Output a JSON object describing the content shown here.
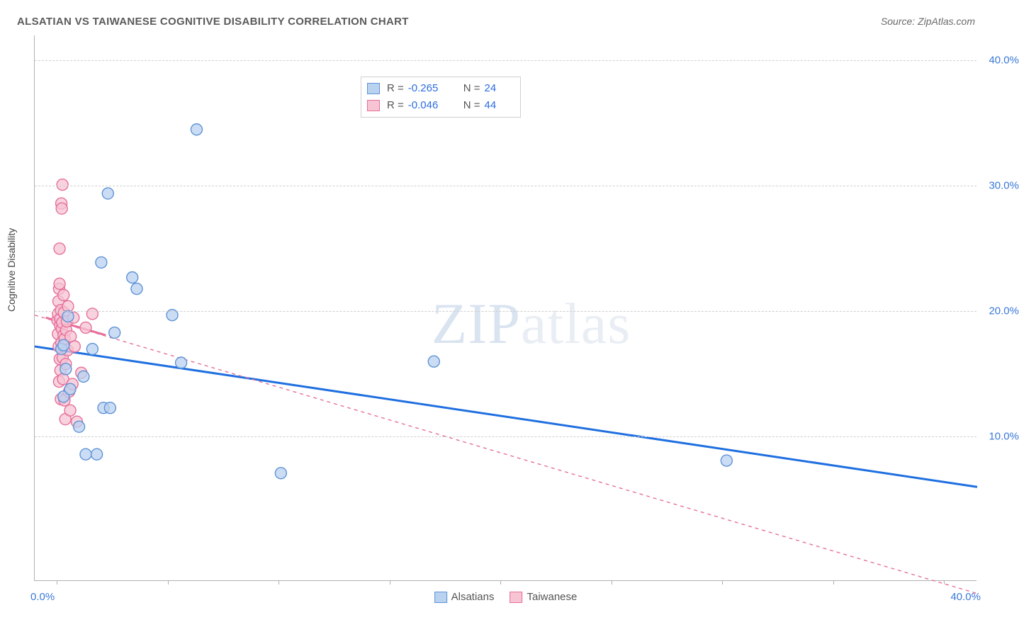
{
  "title": "ALSATIAN VS TAIWANESE COGNITIVE DISABILITY CORRELATION CHART",
  "source_label": "Source: ZipAtlas.com",
  "y_axis_title": "Cognitive Disability",
  "watermark_a": "ZIP",
  "watermark_b": "atlas",
  "chart": {
    "type": "scatter",
    "background_color": "#ffffff",
    "grid_color": "#cfcfcf",
    "axis_color": "#b0b0b0",
    "tick_label_color": "#3b78d8",
    "xlim": [
      -1.0,
      41.5
    ],
    "ylim": [
      -1.5,
      42.0
    ],
    "x_origin_label": "0.0%",
    "x_max_label": "40.0%",
    "x_ticks": [
      0,
      5,
      10,
      15,
      20,
      25,
      30,
      35,
      40
    ],
    "y_ticks": [
      {
        "v": 10.0,
        "label": "10.0%"
      },
      {
        "v": 20.0,
        "label": "20.0%"
      },
      {
        "v": 30.0,
        "label": "30.0%"
      },
      {
        "v": 40.0,
        "label": "40.0%"
      }
    ],
    "marker_radius": 8,
    "marker_stroke_width": 1.4,
    "series": [
      {
        "name": "Alsatians",
        "fill": "#b9d2f0",
        "stroke": "#5f93d6",
        "trend_stroke": "#1f6fe0",
        "trend_width": 3,
        "trend_dash": "none",
        "trend": {
          "x1": -1.0,
          "y1": 17.2,
          "x2": 41.5,
          "y2": 6.0
        },
        "r_label": "R =",
        "r_value": "-0.265",
        "n_label": "N =",
        "n_value": "24",
        "points": [
          [
            0.2,
            17.0
          ],
          [
            0.3,
            13.2
          ],
          [
            0.3,
            17.3
          ],
          [
            0.4,
            15.4
          ],
          [
            0.5,
            19.6
          ],
          [
            0.6,
            13.8
          ],
          [
            1.0,
            10.8
          ],
          [
            1.2,
            14.8
          ],
          [
            1.3,
            8.6
          ],
          [
            1.6,
            17.0
          ],
          [
            1.8,
            8.6
          ],
          [
            2.0,
            23.9
          ],
          [
            2.1,
            12.3
          ],
          [
            2.3,
            29.4
          ],
          [
            2.4,
            12.3
          ],
          [
            2.6,
            18.3
          ],
          [
            3.4,
            22.7
          ],
          [
            3.6,
            21.8
          ],
          [
            5.2,
            19.7
          ],
          [
            5.6,
            15.9
          ],
          [
            6.3,
            34.5
          ],
          [
            10.1,
            7.1
          ],
          [
            17.0,
            16.0
          ],
          [
            30.2,
            8.1
          ]
        ]
      },
      {
        "name": "Taiwanese",
        "fill": "#f6c4d3",
        "stroke": "#e66f9a",
        "trend_stroke": "#e66f9a",
        "trend_width": 1.4,
        "trend_dash": "5,5",
        "trend": {
          "x1": -1.0,
          "y1": 19.7,
          "x2": 41.5,
          "y2": -2.5
        },
        "trend_solid_segment": {
          "x1": -0.5,
          "y1": 19.5,
          "x2": 2.2,
          "y2": 18.1
        },
        "r_label": "R =",
        "r_value": "-0.046",
        "n_label": "N =",
        "n_value": "44",
        "points": [
          [
            0.02,
            19.3
          ],
          [
            0.05,
            18.2
          ],
          [
            0.05,
            19.8
          ],
          [
            0.07,
            20.8
          ],
          [
            0.08,
            17.2
          ],
          [
            0.1,
            14.4
          ],
          [
            0.1,
            21.8
          ],
          [
            0.12,
            22.2
          ],
          [
            0.12,
            25.0
          ],
          [
            0.13,
            16.2
          ],
          [
            0.14,
            18.9
          ],
          [
            0.15,
            19.4
          ],
          [
            0.16,
            15.3
          ],
          [
            0.18,
            20.1
          ],
          [
            0.18,
            13.0
          ],
          [
            0.2,
            17.5
          ],
          [
            0.2,
            28.6
          ],
          [
            0.22,
            18.6
          ],
          [
            0.22,
            28.2
          ],
          [
            0.24,
            19.1
          ],
          [
            0.25,
            30.1
          ],
          [
            0.26,
            16.3
          ],
          [
            0.28,
            14.6
          ],
          [
            0.3,
            21.3
          ],
          [
            0.3,
            18.1
          ],
          [
            0.32,
            19.9
          ],
          [
            0.34,
            12.9
          ],
          [
            0.35,
            17.8
          ],
          [
            0.38,
            11.4
          ],
          [
            0.4,
            15.8
          ],
          [
            0.42,
            18.5
          ],
          [
            0.45,
            19.2
          ],
          [
            0.48,
            16.9
          ],
          [
            0.5,
            20.4
          ],
          [
            0.55,
            13.6
          ],
          [
            0.6,
            12.1
          ],
          [
            0.62,
            18.0
          ],
          [
            0.7,
            14.2
          ],
          [
            0.75,
            19.5
          ],
          [
            0.8,
            17.2
          ],
          [
            0.9,
            11.2
          ],
          [
            1.1,
            15.1
          ],
          [
            1.3,
            18.7
          ],
          [
            1.6,
            19.8
          ]
        ]
      }
    ]
  }
}
